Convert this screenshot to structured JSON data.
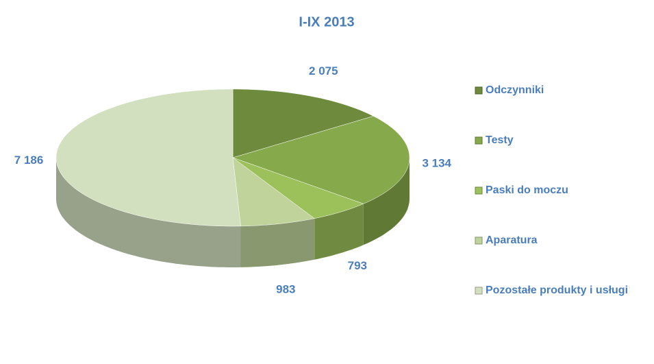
{
  "chart_data": {
    "type": "pie3d",
    "title": "I-IX 2013",
    "categories": [
      "Odczynniki",
      "Testy",
      "Paski do moczu",
      "Aparatura",
      "Pozostałe produkty i usługi"
    ],
    "values": [
      2075,
      3134,
      793,
      983,
      7186
    ],
    "value_labels": [
      "2 075",
      "3 134",
      "793",
      "983",
      "7 186"
    ],
    "colors": [
      "#6e8b3d",
      "#86a94b",
      "#9cc15a",
      "#bfd39a",
      "#d3e0bf"
    ],
    "legend": "right"
  }
}
